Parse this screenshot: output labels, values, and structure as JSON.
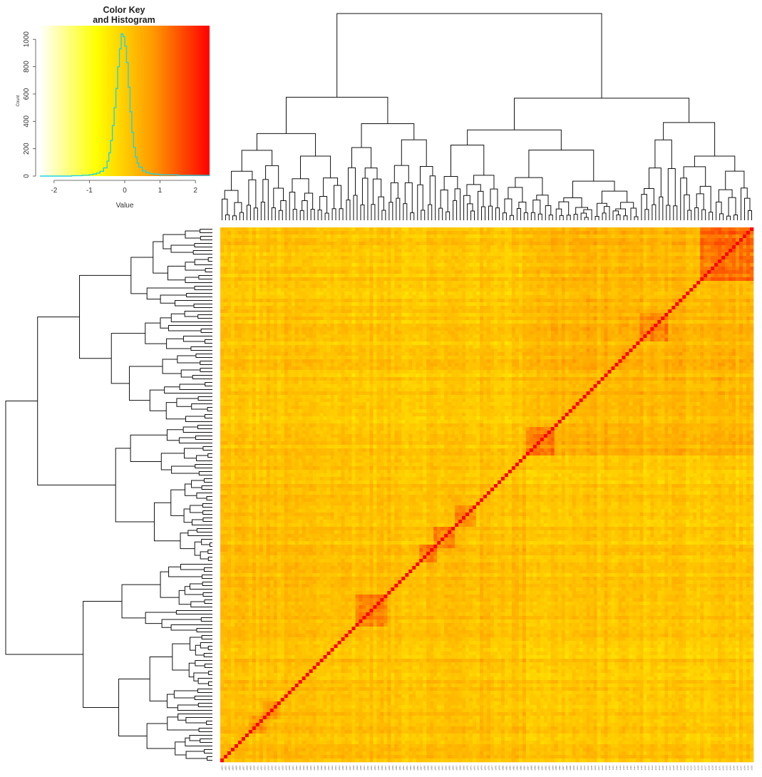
{
  "chart_data": [
    {
      "type": "histogram",
      "title": "Color Key\nand Histogram",
      "xlabel": "Value",
      "ylabel": "Count",
      "xlim": [
        -2.4,
        2.4
      ],
      "ylim": [
        0,
        1100
      ],
      "x_ticks": [
        -2,
        -1,
        0,
        1,
        2
      ],
      "x_tick_labels": [
        "-2",
        "-1",
        "0",
        "1",
        "2"
      ],
      "y_ticks": [
        0,
        200,
        400,
        600,
        800,
        1000
      ],
      "y_tick_labels": [
        "0",
        "200",
        "400",
        "600",
        "800",
        "1000"
      ],
      "colorscale": [
        "#ffffff",
        "#ffff00",
        "#ff9a00",
        "#ff0000"
      ],
      "line_color": "#22d3e0",
      "x": [
        -2.4,
        -1.5,
        -1.2,
        -1.0,
        -0.9,
        -0.8,
        -0.7,
        -0.6,
        -0.5,
        -0.45,
        -0.4,
        -0.35,
        -0.3,
        -0.25,
        -0.2,
        -0.15,
        -0.1,
        -0.05,
        0.0,
        0.05,
        0.1,
        0.15,
        0.2,
        0.25,
        0.3,
        0.35,
        0.4,
        0.5,
        0.6,
        0.7,
        0.8,
        1.0,
        1.5,
        2.4
      ],
      "counts": [
        0,
        3,
        6,
        10,
        15,
        22,
        35,
        60,
        110,
        170,
        260,
        370,
        500,
        640,
        800,
        930,
        1040,
        1020,
        950,
        830,
        650,
        470,
        320,
        210,
        140,
        95,
        65,
        38,
        25,
        18,
        14,
        9,
        5,
        0
      ]
    },
    {
      "type": "heatmap",
      "n": 150,
      "colorscale": [
        "#ffff00",
        "#ffa500",
        "#ff0000"
      ],
      "value_range": [
        -1,
        2
      ],
      "diagonal_value": 2.4,
      "blocks": [
        {
          "start": 135,
          "end": 149,
          "value": 1.0
        },
        {
          "start": 118,
          "end": 125,
          "value": 0.7
        },
        {
          "start": 86,
          "end": 93,
          "value": 0.85
        },
        {
          "start": 66,
          "end": 71,
          "value": 0.75
        },
        {
          "start": 60,
          "end": 65,
          "value": 0.75
        },
        {
          "start": 56,
          "end": 60,
          "value": 0.8
        },
        {
          "start": 38,
          "end": 46,
          "value": 0.75
        },
        {
          "start": 12,
          "end": 16,
          "value": 0.6
        },
        {
          "start": 8,
          "end": 12,
          "value": 0.55
        },
        {
          "start": 86,
          "end": 149,
          "value": 0.2
        },
        {
          "start": 0,
          "end": 85,
          "value": 0.05
        }
      ],
      "column_dendrogram": "top",
      "row_dendrogram": "left",
      "col_labels": [
        "s001",
        "s002",
        "s003",
        "s004",
        "s005",
        "s006",
        "s007",
        "s008",
        "s009",
        "s010",
        "s011",
        "s012",
        "s013",
        "s014",
        "s015",
        "s016",
        "s017",
        "s018",
        "s019",
        "s020",
        "s021",
        "s022",
        "s023",
        "s024",
        "s025",
        "s026",
        "s027",
        "s028",
        "s029",
        "s030",
        "s031",
        "s032",
        "s033",
        "s034",
        "s035",
        "s036",
        "s037",
        "s038",
        "s039",
        "s040",
        "s041",
        "s042",
        "s043",
        "s044",
        "s045",
        "s046",
        "s047",
        "s048",
        "s049",
        "s050",
        "s051",
        "s052",
        "s053",
        "s054",
        "s055",
        "s056",
        "s057",
        "s058",
        "s059",
        "s060",
        "s061",
        "s062",
        "s063",
        "s064",
        "s065",
        "s066",
        "s067",
        "s068",
        "s069",
        "s070",
        "s071",
        "s072",
        "s073",
        "s074",
        "s075",
        "s076",
        "s077",
        "s078",
        "s079",
        "s080",
        "s081",
        "s082",
        "s083",
        "s084",
        "s085",
        "s086",
        "s087",
        "s088",
        "s089",
        "s090",
        "s091",
        "s092",
        "s093",
        "s094",
        "s095",
        "s096",
        "s097",
        "s098",
        "s099",
        "s100",
        "s101",
        "s102",
        "s103",
        "s104",
        "s105",
        "s106",
        "s107",
        "s108",
        "s109",
        "s110",
        "s111",
        "s112",
        "s113",
        "s114",
        "s115",
        "s116",
        "s117",
        "s118",
        "s119",
        "s120",
        "s121",
        "s122",
        "s123",
        "s124",
        "s125",
        "s126",
        "s127",
        "s128",
        "s129",
        "s130",
        "s131",
        "s132",
        "s133",
        "s134",
        "s135",
        "s136",
        "s137",
        "s138",
        "s139",
        "s140",
        "s141",
        "s142",
        "s143",
        "s144",
        "s145",
        "s146",
        "s147",
        "s148",
        "s149",
        "s150"
      ]
    }
  ]
}
